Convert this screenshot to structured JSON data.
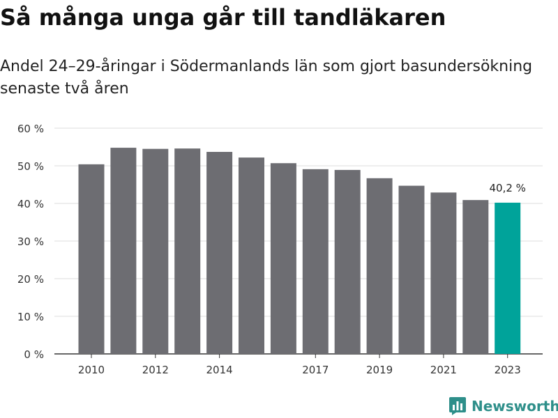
{
  "header": {
    "title": "Så många unga går till tandläkaren",
    "subtitle": "Andel 24–29-åringar i Södermanlands län som gjort basundersökning senaste två åren"
  },
  "brand": {
    "name": "Newsworthy",
    "icon": "bar-chart-logo-icon"
  },
  "colors": {
    "bar": "#6d6d72",
    "highlight": "#00a39a",
    "grid": "#dcdcdc",
    "axis": "#333333"
  },
  "chart_data": {
    "type": "bar",
    "categories": [
      "2010",
      "2011",
      "2012",
      "2013",
      "2014",
      "2015",
      "2016",
      "2017",
      "2018",
      "2019",
      "2020",
      "2021",
      "2022",
      "2023"
    ],
    "values": [
      50.4,
      54.8,
      54.5,
      54.6,
      53.7,
      52.2,
      50.7,
      49.1,
      48.9,
      46.7,
      44.7,
      42.9,
      40.9,
      40.2
    ],
    "x_tick_labels": [
      "2010",
      "2012",
      "2014",
      "2017",
      "2019",
      "2021",
      "2023"
    ],
    "y_ticks": [
      0,
      10,
      20,
      30,
      40,
      50,
      60
    ],
    "y_tick_labels": [
      "0 %",
      "10 %",
      "20 %",
      "30 %",
      "40 %",
      "50 %",
      "60 %"
    ],
    "ylim": [
      0,
      60
    ],
    "highlight_index": 13,
    "annotation": "40,2 %",
    "grid": true,
    "xlabel": "",
    "ylabel": ""
  }
}
